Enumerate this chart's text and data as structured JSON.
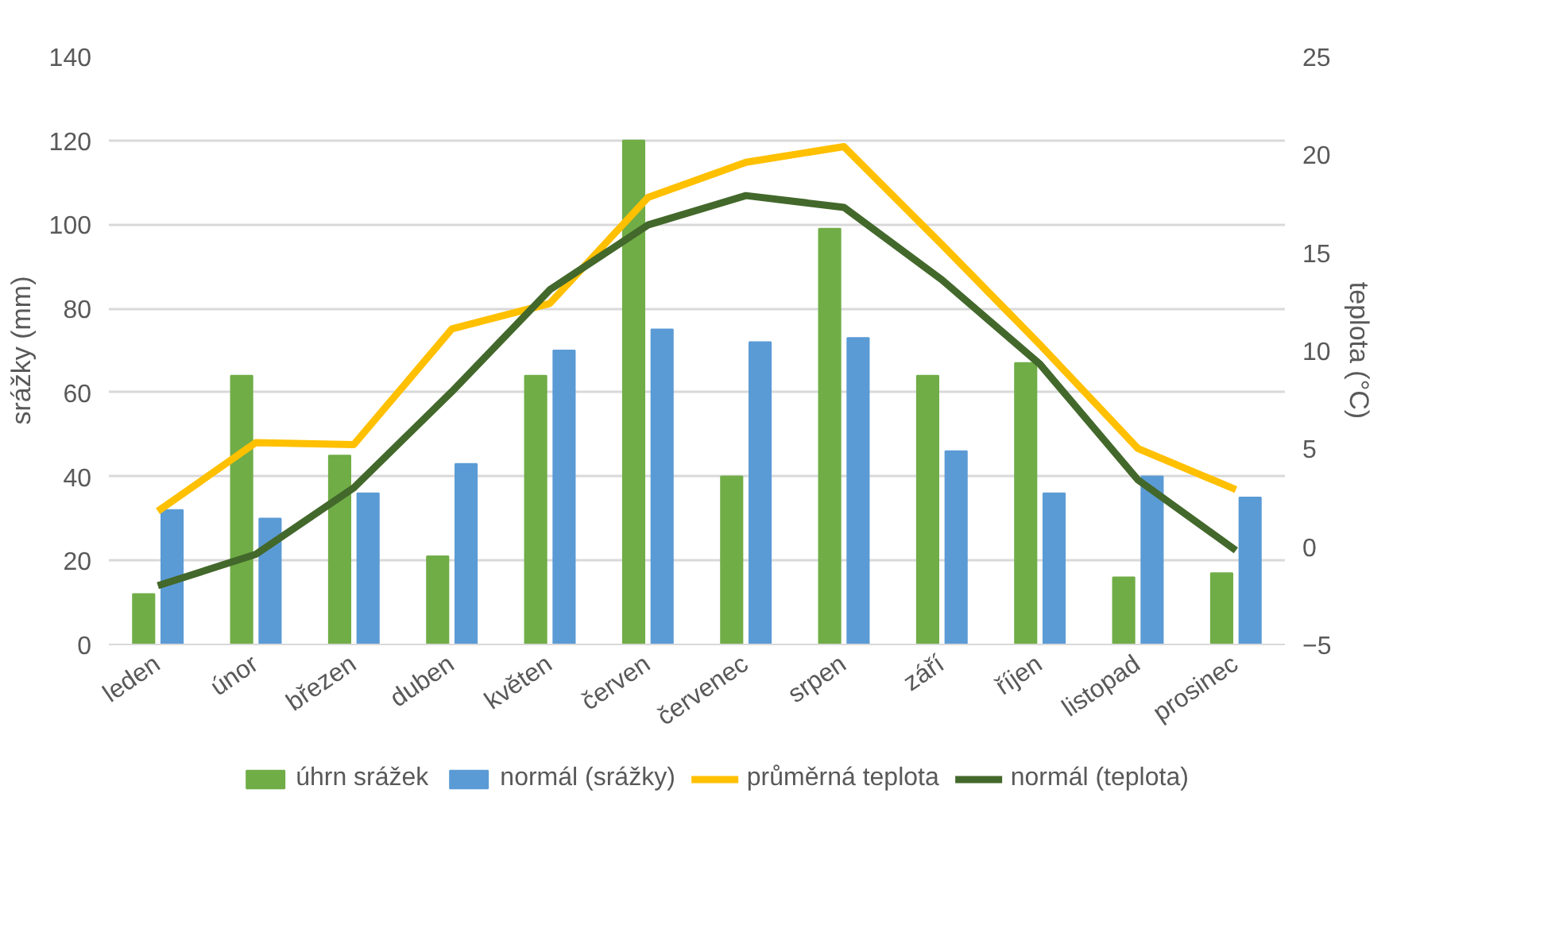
{
  "chart_data": {
    "type": "bar",
    "ylabel": "srážky (mm)",
    "y2label": "teplota (°C)",
    "categories": [
      "leden",
      "únor",
      "březen",
      "duben",
      "květen",
      "červen",
      "červenec",
      "srpen",
      "září",
      "říjen",
      "listopad",
      "prosinec"
    ],
    "series": [
      {
        "name": "úhrn srážek",
        "color": "#70ad47",
        "values": [
          12,
          64,
          45,
          21,
          64,
          120,
          40,
          99,
          64,
          67,
          16,
          17
        ]
      },
      {
        "name": "normál (srážky)",
        "color": "#5b9bd5",
        "values": [
          32,
          30,
          36,
          43,
          70,
          75,
          72,
          73,
          46,
          36,
          40,
          35
        ]
      },
      {
        "name": "průměrná teplota",
        "type": "line",
        "axis": "y2",
        "color": "#ffc000",
        "values": [
          1.8,
          5.3,
          5.2,
          11.1,
          12.4,
          17.8,
          19.6,
          20.4,
          15.4,
          10.3,
          5.0,
          2.9
        ]
      },
      {
        "name": "normál (teplota)",
        "type": "line",
        "axis": "y2",
        "color": "#43682b",
        "values": [
          -2.0,
          -0.4,
          3.0,
          7.9,
          13.1,
          16.4,
          17.9,
          17.3,
          13.6,
          9.3,
          3.4,
          -0.2
        ]
      }
    ],
    "ylim": [
      0,
      140
    ],
    "yticks": [
      0,
      20,
      40,
      60,
      80,
      100,
      120,
      140
    ],
    "y2lim": [
      -5,
      25
    ],
    "y2ticks": [
      -5,
      0,
      5,
      10,
      15,
      20,
      25
    ],
    "grid": "y",
    "legend": "bottom"
  }
}
